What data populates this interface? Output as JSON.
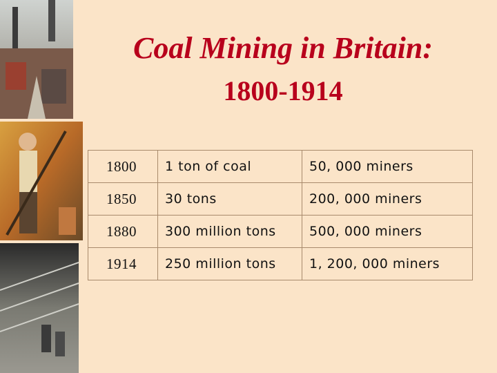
{
  "header": {
    "title": "Coal Mining in Britain:",
    "subtitle": "1800-1914"
  },
  "table": {
    "rows": [
      [
        "1800",
        "1 ton of coal",
        "50, 000 miners"
      ],
      [
        "1850",
        "30 tons",
        "200, 000 miners"
      ],
      [
        "1880",
        "300 million tons",
        "500, 000 miners"
      ],
      [
        "1914",
        "250 million tons",
        "1, 200, 000 miners"
      ]
    ]
  }
}
